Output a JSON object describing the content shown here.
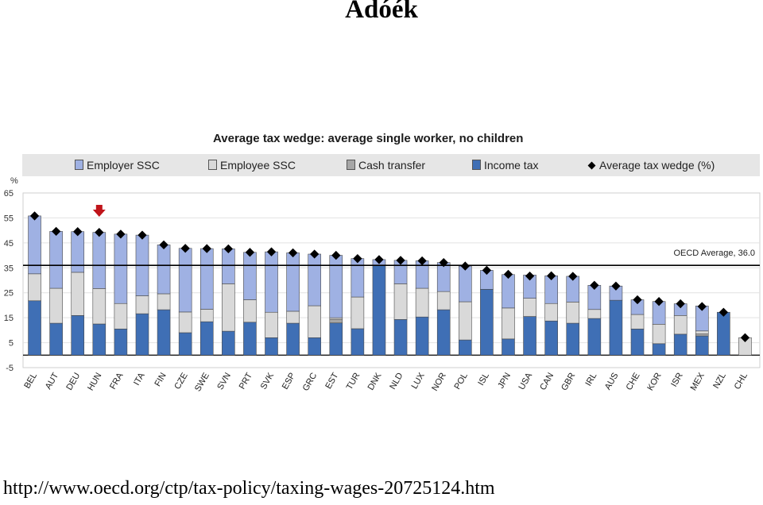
{
  "slide": {
    "title": "Adóék",
    "url": "http://www.oecd.org/ctp/tax-policy/taxing-wages-20725124.htm"
  },
  "colors": {
    "employer_ssc": "#9fb1e3",
    "employee_ssc": "#d9d9d9",
    "cash_transfer": "#a6a6a6",
    "income_tax": "#3f6fb5",
    "wedge_marker": "#000000",
    "arrow": "#c0141a"
  },
  "chart_data": {
    "type": "bar",
    "stacked": true,
    "title": "Average tax wedge: average single worker, no children",
    "ylabel": "%",
    "ylim": [
      -5,
      65
    ],
    "yticks": [
      -5,
      5,
      15,
      25,
      35,
      45,
      55,
      65
    ],
    "legend": {
      "employer_ssc": "Employer SSC",
      "employee_ssc": "Employee SSC",
      "cash_transfer": "Cash transfer",
      "income_tax": "Income tax",
      "wedge": "Average tax wedge (%)"
    },
    "legend_position": "top",
    "reference_line": {
      "label": "OECD Average, 36.0",
      "value": 36.0
    },
    "highlight": "HUN",
    "categories": [
      "BEL",
      "AUT",
      "DEU",
      "HUN",
      "FRA",
      "ITA",
      "FIN",
      "CZE",
      "SWE",
      "SVN",
      "PRT",
      "SVK",
      "ESP",
      "GRC",
      "EST",
      "TUR",
      "DNK",
      "NLD",
      "LUX",
      "NOR",
      "POL",
      "ISL",
      "JPN",
      "USA",
      "CAN",
      "GBR",
      "IRL",
      "AUS",
      "CHE",
      "KOR",
      "ISR",
      "MEX",
      "NZL",
      "CHL"
    ],
    "series": [
      {
        "name": "Income tax",
        "key": "income_tax",
        "values": [
          21.8,
          12.8,
          15.9,
          12.5,
          10.5,
          16.6,
          18.2,
          9.0,
          13.4,
          9.6,
          13.2,
          7.0,
          12.8,
          7.0,
          12.9,
          10.6,
          35.9,
          14.3,
          15.3,
          18.2,
          6.1,
          26.4,
          6.5,
          15.5,
          13.7,
          12.8,
          14.7,
          22.0,
          10.5,
          4.6,
          8.4,
          7.7,
          17.2,
          0
        ]
      },
      {
        "name": "Cash transfer",
        "key": "cash_transfer",
        "values": [
          0,
          0,
          0,
          0,
          0,
          0,
          0,
          0,
          0,
          0,
          0,
          0,
          0,
          0,
          1.5,
          0,
          0,
          0,
          0,
          0,
          0,
          0,
          0,
          0,
          0,
          0,
          0,
          0,
          0,
          0,
          0,
          0.8,
          0,
          0
        ]
      },
      {
        "name": "Employee SSC",
        "key": "employee_ssc",
        "values": [
          10.8,
          14.0,
          17.3,
          14.2,
          10.2,
          7.2,
          6.4,
          8.3,
          5.0,
          19.0,
          9.0,
          10.2,
          4.8,
          12.8,
          0.6,
          12.7,
          0,
          14.3,
          11.5,
          7.3,
          15.3,
          0,
          12.4,
          7.3,
          7.0,
          8.5,
          3.6,
          0,
          5.8,
          7.8,
          7.5,
          1.2,
          0,
          7.0
        ]
      },
      {
        "name": "Employer SSC",
        "key": "employer_ssc",
        "values": [
          23.2,
          22.8,
          16.3,
          22.5,
          27.8,
          24.3,
          19.6,
          25.5,
          24.3,
          14.0,
          19.0,
          24.2,
          23.4,
          20.7,
          25.0,
          15.4,
          2.4,
          9.4,
          11.0,
          11.6,
          14.3,
          7.6,
          13.4,
          9.3,
          11.1,
          10.3,
          9.7,
          5.7,
          5.9,
          9.1,
          4.7,
          10.0,
          0,
          0
        ]
      }
    ],
    "wedge": [
      55.8,
      49.6,
      49.5,
      49.2,
      48.5,
      48.1,
      44.2,
      42.8,
      42.7,
      42.6,
      41.2,
      41.4,
      41.0,
      40.5,
      40.0,
      38.7,
      38.3,
      38.0,
      37.8,
      37.1,
      35.7,
      34.0,
      32.4,
      31.7,
      31.8,
      31.6,
      28.0,
      27.7,
      22.2,
      21.5,
      20.6,
      19.5,
      17.2,
      7.0
    ]
  }
}
